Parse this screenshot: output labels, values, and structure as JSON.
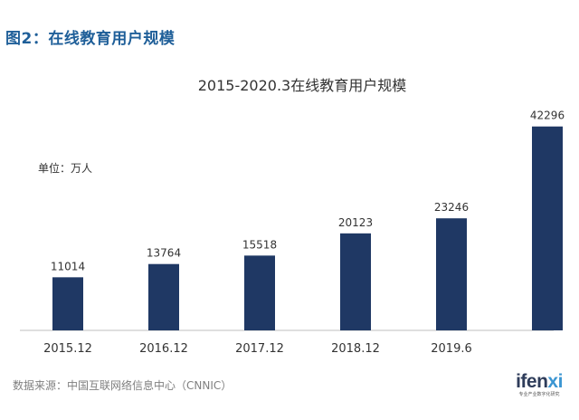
{
  "figure_label": {
    "prefix": "图2：",
    "title": "在线教育用户规模"
  },
  "chart_data": {
    "type": "bar",
    "title": "2015-2020.3在线教育用户规模",
    "unit_label": "单位：万人",
    "categories": [
      "2015.12",
      "2016.12",
      "2017.12",
      "2018.12",
      "2019.6",
      ""
    ],
    "values": [
      11014,
      13764,
      15518,
      20123,
      23246,
      42296
    ],
    "ylim": [
      0,
      46000
    ],
    "bar_color": "#1f3864",
    "grid": false,
    "legend": "none"
  },
  "footer": {
    "source": "数据来源：中国互联网络信息中心（CNNIC）"
  },
  "logo": {
    "brand_main": "ifen",
    "brand_accent": "xi",
    "slogan": "专业产业数字化研究"
  }
}
